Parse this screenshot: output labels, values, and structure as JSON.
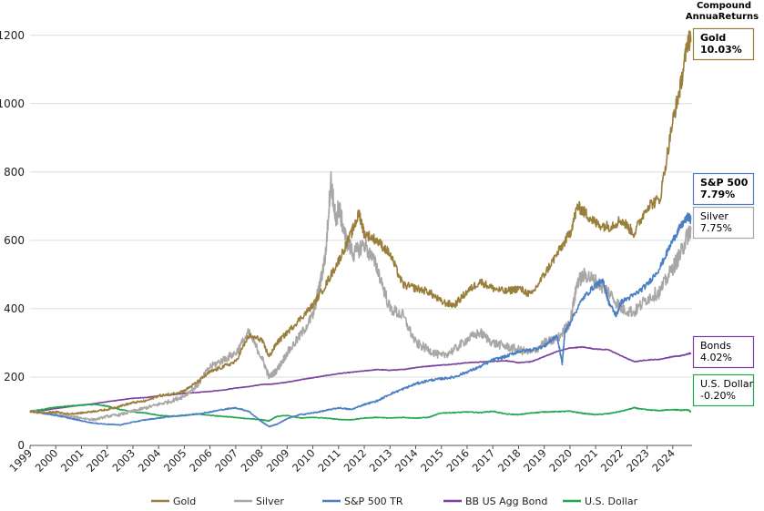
{
  "chart_data": {
    "type": "line",
    "title": "",
    "xlabel": "",
    "ylabel": "",
    "xlim": [
      1999.0,
      2024.75
    ],
    "ylim": [
      0,
      1250
    ],
    "yticks": [
      0,
      200,
      400,
      600,
      800,
      1000,
      1200
    ],
    "xticks": [
      "1999",
      "2000",
      "2001",
      "2002",
      "2003",
      "2004",
      "2005",
      "2006",
      "2007",
      "2008",
      "2009",
      "2010",
      "2011",
      "2012",
      "2013",
      "2014",
      "2015",
      "2016",
      "2017",
      "2018",
      "2019",
      "2020",
      "2021",
      "2022",
      "2023",
      "2024"
    ],
    "grid": true,
    "legend_position": "bottom",
    "annotation_header": [
      "Compound",
      "AnnuaReturns"
    ],
    "series": [
      {
        "name": "Gold",
        "color": "#9A7F3C",
        "return_label": "Gold",
        "return_value": "10.03%",
        "points": [
          [
            1999,
            100
          ],
          [
            1999.5,
            95
          ],
          [
            2000,
            98
          ],
          [
            2000.5,
            92
          ],
          [
            2001,
            95
          ],
          [
            2001.5,
            100
          ],
          [
            2002,
            105
          ],
          [
            2002.5,
            115
          ],
          [
            2003,
            125
          ],
          [
            2003.5,
            130
          ],
          [
            2004,
            145
          ],
          [
            2004.5,
            150
          ],
          [
            2005,
            160
          ],
          [
            2005.5,
            185
          ],
          [
            2006,
            215
          ],
          [
            2006.5,
            230
          ],
          [
            2007,
            245
          ],
          [
            2007.5,
            320
          ],
          [
            2008,
            310
          ],
          [
            2008.3,
            260
          ],
          [
            2008.6,
            300
          ],
          [
            2009,
            330
          ],
          [
            2009.5,
            370
          ],
          [
            2010,
            410
          ],
          [
            2010.5,
            470
          ],
          [
            2011,
            540
          ],
          [
            2011.5,
            620
          ],
          [
            2011.8,
            680
          ],
          [
            2012,
            620
          ],
          [
            2012.5,
            600
          ],
          [
            2013,
            560
          ],
          [
            2013.5,
            470
          ],
          [
            2014,
            460
          ],
          [
            2014.5,
            450
          ],
          [
            2015,
            420
          ],
          [
            2015.5,
            410
          ],
          [
            2016,
            450
          ],
          [
            2016.5,
            480
          ],
          [
            2017,
            460
          ],
          [
            2017.5,
            450
          ],
          [
            2018,
            460
          ],
          [
            2018.5,
            440
          ],
          [
            2019,
            500
          ],
          [
            2019.5,
            560
          ],
          [
            2020,
            620
          ],
          [
            2020.3,
            700
          ],
          [
            2020.6,
            680
          ],
          [
            2021,
            650
          ],
          [
            2021.5,
            640
          ],
          [
            2022,
            660
          ],
          [
            2022.5,
            620
          ],
          [
            2023,
            700
          ],
          [
            2023.5,
            720
          ],
          [
            2024,
            950
          ],
          [
            2024.3,
            1050
          ],
          [
            2024.6,
            1190
          ],
          [
            2024.7,
            1180
          ]
        ]
      },
      {
        "name": "Silver",
        "color": "#A9A7A6",
        "return_label": "Silver",
        "return_value": "7.75%",
        "points": [
          [
            1999,
            100
          ],
          [
            1999.5,
            95
          ],
          [
            2000,
            90
          ],
          [
            2000.5,
            85
          ],
          [
            2001,
            80
          ],
          [
            2001.5,
            75
          ],
          [
            2002,
            85
          ],
          [
            2002.5,
            90
          ],
          [
            2003,
            100
          ],
          [
            2003.5,
            110
          ],
          [
            2004,
            120
          ],
          [
            2004.5,
            130
          ],
          [
            2005,
            145
          ],
          [
            2005.5,
            175
          ],
          [
            2006,
            230
          ],
          [
            2006.5,
            250
          ],
          [
            2007,
            270
          ],
          [
            2007.5,
            330
          ],
          [
            2008,
            260
          ],
          [
            2008.3,
            200
          ],
          [
            2008.6,
            220
          ],
          [
            2009,
            270
          ],
          [
            2009.5,
            320
          ],
          [
            2010,
            380
          ],
          [
            2010.3,
            480
          ],
          [
            2010.5,
            560
          ],
          [
            2010.7,
            780
          ],
          [
            2010.9,
            650
          ],
          [
            2011,
            700
          ],
          [
            2011.3,
            600
          ],
          [
            2011.6,
            560
          ],
          [
            2012,
            590
          ],
          [
            2012.5,
            520
          ],
          [
            2013,
            400
          ],
          [
            2013.5,
            380
          ],
          [
            2014,
            300
          ],
          [
            2014.5,
            280
          ],
          [
            2015,
            260
          ],
          [
            2015.5,
            280
          ],
          [
            2016,
            310
          ],
          [
            2016.5,
            330
          ],
          [
            2017,
            300
          ],
          [
            2017.5,
            290
          ],
          [
            2018,
            280
          ],
          [
            2018.5,
            270
          ],
          [
            2019,
            300
          ],
          [
            2019.5,
            310
          ],
          [
            2020,
            360
          ],
          [
            2020.3,
            480
          ],
          [
            2020.6,
            500
          ],
          [
            2021,
            480
          ],
          [
            2021.5,
            450
          ],
          [
            2022,
            400
          ],
          [
            2022.5,
            390
          ],
          [
            2023,
            430
          ],
          [
            2023.5,
            450
          ],
          [
            2024,
            520
          ],
          [
            2024.3,
            560
          ],
          [
            2024.6,
            620
          ],
          [
            2024.7,
            630
          ]
        ]
      },
      {
        "name": "S&P 500 TR",
        "color": "#4A7FC4",
        "return_label": "S&P 500",
        "return_value": "7.79%",
        "points": [
          [
            1999,
            100
          ],
          [
            1999.5,
            95
          ],
          [
            2000,
            88
          ],
          [
            2000.5,
            80
          ],
          [
            2001,
            72
          ],
          [
            2001.5,
            65
          ],
          [
            2002,
            62
          ],
          [
            2002.5,
            60
          ],
          [
            2003,
            68
          ],
          [
            2003.5,
            75
          ],
          [
            2004,
            80
          ],
          [
            2004.5,
            85
          ],
          [
            2005,
            88
          ],
          [
            2005.5,
            92
          ],
          [
            2006,
            98
          ],
          [
            2006.5,
            105
          ],
          [
            2007,
            110
          ],
          [
            2007.5,
            100
          ],
          [
            2008,
            70
          ],
          [
            2008.3,
            55
          ],
          [
            2008.6,
            62
          ],
          [
            2009,
            78
          ],
          [
            2009.5,
            90
          ],
          [
            2010,
            95
          ],
          [
            2010.5,
            102
          ],
          [
            2011,
            110
          ],
          [
            2011.5,
            105
          ],
          [
            2012,
            120
          ],
          [
            2012.5,
            130
          ],
          [
            2013,
            150
          ],
          [
            2013.5,
            165
          ],
          [
            2014,
            180
          ],
          [
            2014.5,
            190
          ],
          [
            2015,
            195
          ],
          [
            2015.5,
            200
          ],
          [
            2016,
            215
          ],
          [
            2016.5,
            230
          ],
          [
            2017,
            250
          ],
          [
            2017.5,
            260
          ],
          [
            2018,
            275
          ],
          [
            2018.5,
            280
          ],
          [
            2019,
            290
          ],
          [
            2019.3,
            310
          ],
          [
            2019.5,
            320
          ],
          [
            2019.7,
            240
          ],
          [
            2019.8,
            330
          ],
          [
            2020,
            360
          ],
          [
            2020.5,
            430
          ],
          [
            2021,
            470
          ],
          [
            2021.3,
            480
          ],
          [
            2021.5,
            420
          ],
          [
            2021.8,
            380
          ],
          [
            2022,
            420
          ],
          [
            2022.5,
            440
          ],
          [
            2023,
            470
          ],
          [
            2023.5,
            520
          ],
          [
            2024,
            600
          ],
          [
            2024.3,
            640
          ],
          [
            2024.6,
            670
          ],
          [
            2024.7,
            660
          ]
        ]
      },
      {
        "name": "BB US Agg Bond",
        "color": "#7A3FA0",
        "return_label": "Bonds",
        "return_value": "4.02%",
        "points": [
          [
            1999,
            100
          ],
          [
            1999.5,
            102
          ],
          [
            2000,
            108
          ],
          [
            2000.5,
            113
          ],
          [
            2001,
            118
          ],
          [
            2001.5,
            122
          ],
          [
            2002,
            128
          ],
          [
            2002.5,
            133
          ],
          [
            2003,
            138
          ],
          [
            2003.5,
            140
          ],
          [
            2004,
            145
          ],
          [
            2004.5,
            148
          ],
          [
            2005,
            152
          ],
          [
            2005.5,
            155
          ],
          [
            2006,
            158
          ],
          [
            2006.5,
            162
          ],
          [
            2007,
            168
          ],
          [
            2007.5,
            172
          ],
          [
            2008,
            178
          ],
          [
            2008.5,
            180
          ],
          [
            2009,
            185
          ],
          [
            2009.5,
            192
          ],
          [
            2010,
            198
          ],
          [
            2010.5,
            204
          ],
          [
            2011,
            210
          ],
          [
            2011.5,
            214
          ],
          [
            2012,
            218
          ],
          [
            2012.5,
            222
          ],
          [
            2013,
            220
          ],
          [
            2013.5,
            222
          ],
          [
            2014,
            228
          ],
          [
            2014.5,
            232
          ],
          [
            2015,
            235
          ],
          [
            2015.5,
            238
          ],
          [
            2016,
            242
          ],
          [
            2016.5,
            244
          ],
          [
            2017,
            246
          ],
          [
            2017.5,
            248
          ],
          [
            2018,
            242
          ],
          [
            2018.5,
            245
          ],
          [
            2019,
            260
          ],
          [
            2019.5,
            275
          ],
          [
            2020,
            285
          ],
          [
            2020.5,
            288
          ],
          [
            2021,
            282
          ],
          [
            2021.5,
            280
          ],
          [
            2022,
            262
          ],
          [
            2022.5,
            245
          ],
          [
            2023,
            250
          ],
          [
            2023.5,
            252
          ],
          [
            2024,
            260
          ],
          [
            2024.3,
            262
          ],
          [
            2024.6,
            268
          ],
          [
            2024.7,
            270
          ]
        ]
      },
      {
        "name": "U.S. Dollar",
        "color": "#22A64E",
        "return_label": "U.S. Dollar",
        "return_value": "-0.20%",
        "points": [
          [
            1999,
            100
          ],
          [
            1999.5,
            105
          ],
          [
            2000,
            112
          ],
          [
            2000.5,
            115
          ],
          [
            2001,
            118
          ],
          [
            2001.5,
            120
          ],
          [
            2002,
            115
          ],
          [
            2002.5,
            105
          ],
          [
            2003,
            98
          ],
          [
            2003.5,
            95
          ],
          [
            2004,
            88
          ],
          [
            2004.5,
            85
          ],
          [
            2005,
            88
          ],
          [
            2005.5,
            92
          ],
          [
            2006,
            88
          ],
          [
            2006.5,
            85
          ],
          [
            2007,
            82
          ],
          [
            2007.5,
            78
          ],
          [
            2008,
            75
          ],
          [
            2008.3,
            72
          ],
          [
            2008.6,
            85
          ],
          [
            2009,
            88
          ],
          [
            2009.5,
            80
          ],
          [
            2010,
            82
          ],
          [
            2010.5,
            80
          ],
          [
            2011,
            76
          ],
          [
            2011.5,
            75
          ],
          [
            2012,
            80
          ],
          [
            2012.5,
            82
          ],
          [
            2013,
            80
          ],
          [
            2013.5,
            82
          ],
          [
            2014,
            80
          ],
          [
            2014.5,
            82
          ],
          [
            2015,
            95
          ],
          [
            2015.5,
            96
          ],
          [
            2016,
            98
          ],
          [
            2016.5,
            96
          ],
          [
            2017,
            100
          ],
          [
            2017.5,
            92
          ],
          [
            2018,
            90
          ],
          [
            2018.5,
            95
          ],
          [
            2019,
            98
          ],
          [
            2019.5,
            99
          ],
          [
            2020,
            100
          ],
          [
            2020.5,
            94
          ],
          [
            2021,
            90
          ],
          [
            2021.5,
            93
          ],
          [
            2022,
            100
          ],
          [
            2022.5,
            110
          ],
          [
            2023,
            104
          ],
          [
            2023.5,
            102
          ],
          [
            2024,
            105
          ],
          [
            2024.3,
            103
          ],
          [
            2024.6,
            104
          ],
          [
            2024.7,
            98
          ]
        ]
      }
    ]
  }
}
